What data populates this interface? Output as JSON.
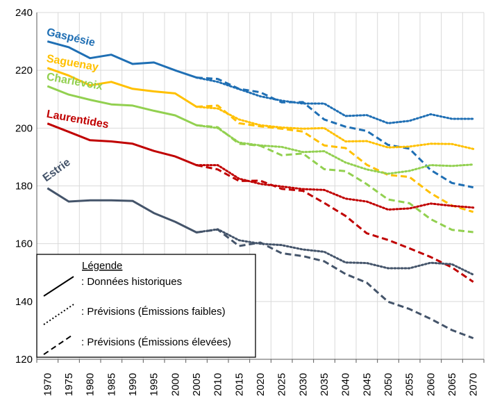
{
  "chart_data": {
    "type": "line",
    "title": "",
    "xlabel": "",
    "ylabel": "",
    "ylim": [
      120,
      240
    ],
    "yticks": [
      120,
      140,
      160,
      180,
      200,
      220,
      240
    ],
    "x": [
      1970,
      1975,
      1980,
      1985,
      1990,
      1995,
      2000,
      2005,
      2010,
      2015,
      2020,
      2025,
      2030,
      2035,
      2040,
      2045,
      2050,
      2055,
      2060,
      2065,
      2070
    ],
    "grid": true,
    "series": [
      {
        "name": "Gaspésie",
        "color": "#1f6fb4",
        "historical": [
          [
            1970,
            230
          ],
          [
            1975,
            228
          ],
          [
            1980,
            224.2
          ],
          [
            1985,
            225.4
          ],
          [
            1990,
            222.2
          ],
          [
            1995,
            222.7
          ],
          [
            2000,
            220
          ],
          [
            2005,
            217.5
          ]
        ],
        "low": [
          [
            2005,
            217.5
          ],
          [
            2010,
            216
          ],
          [
            2015,
            213.5
          ],
          [
            2020,
            211
          ],
          [
            2025,
            209.5
          ],
          [
            2030,
            208.5
          ],
          [
            2035,
            208.5
          ],
          [
            2040,
            204.2
          ],
          [
            2045,
            204.5
          ],
          [
            2050,
            201.7
          ],
          [
            2055,
            202.5
          ],
          [
            2060,
            204.8
          ],
          [
            2065,
            203.2
          ],
          [
            2070,
            203.2
          ]
        ],
        "high": [
          [
            2005,
            217.5
          ],
          [
            2010,
            217
          ],
          [
            2015,
            213.6
          ],
          [
            2020,
            212.4
          ],
          [
            2025,
            208.9
          ],
          [
            2030,
            209
          ],
          [
            2035,
            203
          ],
          [
            2040,
            200.5
          ],
          [
            2045,
            199
          ],
          [
            2050,
            194.2
          ],
          [
            2055,
            192.9
          ],
          [
            2060,
            185.5
          ],
          [
            2065,
            181
          ],
          [
            2070,
            179.5
          ]
        ]
      },
      {
        "name": "Saguenay",
        "color": "#ffc000",
        "historical": [
          [
            1970,
            220.8
          ],
          [
            1975,
            218.2
          ],
          [
            1980,
            214.8
          ],
          [
            1985,
            216
          ],
          [
            1990,
            213.6
          ],
          [
            1995,
            212.7
          ],
          [
            2000,
            212
          ],
          [
            2005,
            207.4
          ]
        ],
        "low": [
          [
            2005,
            207.4
          ],
          [
            2010,
            206.8
          ],
          [
            2015,
            203
          ],
          [
            2020,
            201
          ],
          [
            2025,
            200.2
          ],
          [
            2030,
            199.8
          ],
          [
            2035,
            200
          ],
          [
            2040,
            195.4
          ],
          [
            2045,
            195.5
          ],
          [
            2050,
            193.3
          ],
          [
            2055,
            193.6
          ],
          [
            2060,
            194.6
          ],
          [
            2065,
            194.5
          ],
          [
            2070,
            192.8
          ]
        ],
        "high": [
          [
            2005,
            207.4
          ],
          [
            2010,
            207.8
          ],
          [
            2015,
            201.7
          ],
          [
            2020,
            200.6
          ],
          [
            2025,
            199.8
          ],
          [
            2030,
            198.8
          ],
          [
            2035,
            194
          ],
          [
            2040,
            193.1
          ],
          [
            2045,
            187.3
          ],
          [
            2050,
            183.8
          ],
          [
            2055,
            183.1
          ],
          [
            2060,
            177.5
          ],
          [
            2065,
            173.2
          ],
          [
            2070,
            171
          ]
        ]
      },
      {
        "name": "Charlevoix",
        "color": "#92d050",
        "historical": [
          [
            1970,
            214.5
          ],
          [
            1975,
            211.6
          ],
          [
            1980,
            209.8
          ],
          [
            1985,
            208.2
          ],
          [
            1990,
            207.8
          ],
          [
            1995,
            206
          ],
          [
            2000,
            204.4
          ],
          [
            2005,
            201
          ]
        ],
        "low": [
          [
            2005,
            201
          ],
          [
            2010,
            200
          ],
          [
            2015,
            195
          ],
          [
            2020,
            194
          ],
          [
            2025,
            193.5
          ],
          [
            2030,
            191.7
          ],
          [
            2035,
            192
          ],
          [
            2040,
            188.1
          ],
          [
            2045,
            185.7
          ],
          [
            2050,
            184.2
          ],
          [
            2055,
            185.2
          ],
          [
            2060,
            187.2
          ],
          [
            2065,
            186.9
          ],
          [
            2070,
            187.4
          ]
        ],
        "high": [
          [
            2005,
            201
          ],
          [
            2010,
            200.3
          ],
          [
            2015,
            194.6
          ],
          [
            2020,
            193.9
          ],
          [
            2025,
            190.6
          ],
          [
            2030,
            191.2
          ],
          [
            2035,
            185.8
          ],
          [
            2040,
            185.1
          ],
          [
            2045,
            180.6
          ],
          [
            2050,
            175.3
          ],
          [
            2055,
            174
          ],
          [
            2060,
            168.5
          ],
          [
            2065,
            164.8
          ],
          [
            2070,
            164
          ]
        ]
      },
      {
        "name": "Laurentides",
        "color": "#c00000",
        "historical": [
          [
            1970,
            201.6
          ],
          [
            1975,
            198.7
          ],
          [
            1980,
            195.8
          ],
          [
            1985,
            195.4
          ],
          [
            1990,
            194.6
          ],
          [
            1995,
            192.1
          ],
          [
            2000,
            190.2
          ],
          [
            2005,
            187.2
          ]
        ],
        "low": [
          [
            2005,
            187.2
          ],
          [
            2010,
            187.2
          ],
          [
            2015,
            182.5
          ],
          [
            2020,
            180.7
          ],
          [
            2025,
            179.8
          ],
          [
            2030,
            178.9
          ],
          [
            2035,
            178.6
          ],
          [
            2040,
            175.6
          ],
          [
            2045,
            174.6
          ],
          [
            2050,
            171.8
          ],
          [
            2055,
            172.2
          ],
          [
            2060,
            173.9
          ],
          [
            2065,
            173.1
          ],
          [
            2070,
            172.5
          ]
        ],
        "high": [
          [
            2005,
            187.2
          ],
          [
            2010,
            185.7
          ],
          [
            2015,
            181.7
          ],
          [
            2020,
            181.8
          ],
          [
            2025,
            179
          ],
          [
            2030,
            178.3
          ],
          [
            2035,
            174.1
          ],
          [
            2040,
            169.6
          ],
          [
            2045,
            163.6
          ],
          [
            2050,
            161.3
          ],
          [
            2055,
            158.4
          ],
          [
            2060,
            155.4
          ],
          [
            2065,
            151.8
          ],
          [
            2070,
            146.8
          ]
        ]
      },
      {
        "name": "Estrie",
        "color": "#44546a",
        "historical": [
          [
            1970,
            179.2
          ],
          [
            1975,
            174.6
          ],
          [
            1980,
            175
          ],
          [
            1985,
            175
          ],
          [
            1990,
            174.8
          ],
          [
            1995,
            170.6
          ],
          [
            2000,
            167.6
          ],
          [
            2005,
            163.9
          ]
        ],
        "low": [
          [
            2005,
            163.9
          ],
          [
            2010,
            165
          ],
          [
            2015,
            161.2
          ],
          [
            2020,
            160
          ],
          [
            2025,
            159.5
          ],
          [
            2030,
            158
          ],
          [
            2035,
            157.2
          ],
          [
            2040,
            153.5
          ],
          [
            2045,
            153.3
          ],
          [
            2050,
            151.5
          ],
          [
            2055,
            151.5
          ],
          [
            2060,
            153.4
          ],
          [
            2065,
            152.9
          ],
          [
            2070,
            149.3
          ]
        ],
        "high": [
          [
            2005,
            163.9
          ],
          [
            2010,
            164.9
          ],
          [
            2015,
            159.2
          ],
          [
            2020,
            160.4
          ],
          [
            2025,
            156.7
          ],
          [
            2030,
            155.7
          ],
          [
            2035,
            153.9
          ],
          [
            2040,
            149.5
          ],
          [
            2045,
            146.5
          ],
          [
            2050,
            139.9
          ],
          [
            2055,
            137.4
          ],
          [
            2060,
            134
          ],
          [
            2065,
            130.1
          ],
          [
            2070,
            127.3
          ]
        ]
      }
    ],
    "legend": {
      "title": "Légende",
      "historical": ": Données historiques",
      "low": ": Prévisions (Émissions faibles)",
      "high": ": Prévisions (Émissions élevées)",
      "placement": "bottom-left"
    }
  }
}
